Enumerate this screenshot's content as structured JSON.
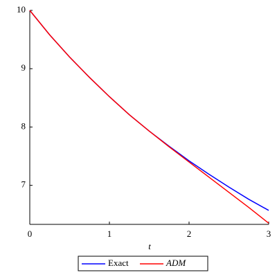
{
  "chart_data": {
    "type": "line",
    "x_label": "t",
    "x": [
      0,
      0.25,
      0.5,
      0.75,
      1,
      1.25,
      1.5,
      1.75,
      2,
      2.25,
      2.5,
      2.75,
      3
    ],
    "series": [
      {
        "name": "Exact",
        "color": "#0000ff",
        "values": [
          10,
          9.58,
          9.2,
          8.85,
          8.52,
          8.21,
          7.93,
          7.67,
          7.42,
          7.19,
          6.97,
          6.76,
          6.57
        ]
      },
      {
        "name": "ADM",
        "color": "#ff0000",
        "values": [
          10,
          9.58,
          9.2,
          8.85,
          8.52,
          8.21,
          7.93,
          7.66,
          7.4,
          7.14,
          6.88,
          6.62,
          6.35
        ]
      }
    ],
    "xlim": [
      0,
      3
    ],
    "xticks": [
      0,
      1,
      2,
      3
    ],
    "ylim": [
      6.33,
      10
    ],
    "yticks": [
      7,
      8,
      9,
      10
    ]
  }
}
